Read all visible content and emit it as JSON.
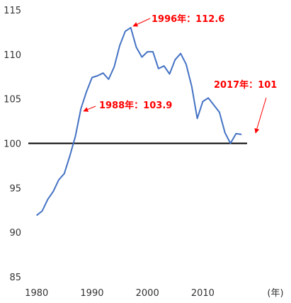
{
  "chart_data": {
    "type": "line",
    "title": "",
    "xlabel": "(年)",
    "ylabel": "",
    "xlim": [
      1978.5,
      2018
    ],
    "ylim": [
      85,
      115
    ],
    "x_ticks": [
      1980,
      1990,
      2000,
      2010
    ],
    "y_ticks": [
      85,
      90,
      95,
      100,
      105,
      110,
      115
    ],
    "grid": false,
    "reference_line": {
      "y": 100,
      "color": "#000000"
    },
    "series": [
      {
        "color": "#4472c4",
        "x": [
          1980,
          1981,
          1982,
          1983,
          1984,
          1985,
          1986,
          1987,
          1988,
          1989,
          1990,
          1991,
          1992,
          1993,
          1994,
          1995,
          1996,
          1997,
          1998,
          1999,
          2000,
          2001,
          2002,
          2003,
          2004,
          2005,
          2006,
          2007,
          2008,
          2009,
          2010,
          2011,
          2012,
          2013,
          2014,
          2015,
          2016,
          2017
        ],
        "y": [
          91.9,
          92.4,
          93.7,
          94.6,
          95.9,
          96.6,
          98.6,
          100.8,
          103.9,
          105.8,
          107.4,
          107.6,
          107.9,
          107.2,
          108.6,
          111.0,
          112.6,
          113.0,
          110.8,
          109.7,
          110.3,
          110.3,
          108.4,
          108.7,
          107.8,
          109.4,
          110.1,
          108.9,
          106.4,
          102.8,
          104.7,
          105.1,
          104.3,
          103.5,
          101.2,
          100.0,
          101.1,
          101.0
        ]
      }
    ],
    "annotations": [
      {
        "text": "1996年：112.6",
        "color": "#ff0000"
      },
      {
        "text": "1988年：103.9",
        "color": "#ff0000"
      },
      {
        "text": "2017年：101",
        "color": "#ff0000"
      }
    ]
  }
}
